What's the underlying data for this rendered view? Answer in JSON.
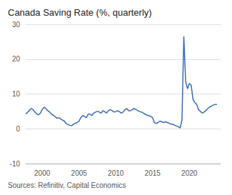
{
  "chart_data": {
    "type": "line",
    "title": "Canada Saving Rate (%, quarterly)",
    "source": "Sources: Refinitiv, Capital Economics",
    "color": "#3d6ab5",
    "grid": true,
    "xlim": [
      1997.75,
      2024.25
    ],
    "xticks": [
      2000,
      2005,
      2010,
      2015,
      2020
    ],
    "ylim": [
      -10,
      30
    ],
    "yticks": [
      -10,
      0,
      10,
      20,
      30
    ],
    "x": [
      1997.75,
      1998.0,
      1998.25,
      1998.5,
      1998.75,
      1999.0,
      1999.25,
      1999.5,
      1999.75,
      2000.0,
      2000.25,
      2000.5,
      2000.75,
      2001.0,
      2001.25,
      2001.5,
      2001.75,
      2002.0,
      2002.25,
      2002.5,
      2002.75,
      2003.0,
      2003.25,
      2003.5,
      2003.75,
      2004.0,
      2004.25,
      2004.5,
      2004.75,
      2005.0,
      2005.25,
      2005.5,
      2005.75,
      2006.0,
      2006.25,
      2006.5,
      2006.75,
      2007.0,
      2007.25,
      2007.5,
      2007.75,
      2008.0,
      2008.25,
      2008.5,
      2008.75,
      2009.0,
      2009.25,
      2009.5,
      2009.75,
      2010.0,
      2010.25,
      2010.5,
      2010.75,
      2011.0,
      2011.25,
      2011.5,
      2011.75,
      2012.0,
      2012.25,
      2012.5,
      2012.75,
      2013.0,
      2013.25,
      2013.5,
      2013.75,
      2014.0,
      2014.25,
      2014.5,
      2014.75,
      2015.0,
      2015.25,
      2015.5,
      2015.75,
      2016.0,
      2016.25,
      2016.5,
      2016.75,
      2017.0,
      2017.25,
      2017.5,
      2017.75,
      2018.0,
      2018.25,
      2018.5,
      2018.75,
      2019.0,
      2019.25,
      2019.5,
      2019.75,
      2020.0,
      2020.25,
      2020.5,
      2020.75,
      2021.0,
      2021.25,
      2021.5,
      2021.75,
      2022.0,
      2022.25,
      2022.5,
      2022.75,
      2023.0,
      2023.25,
      2023.5,
      2023.75
    ],
    "values": [
      4.3,
      4.7,
      5.3,
      5.8,
      5.5,
      4.8,
      4.3,
      4.0,
      4.5,
      5.5,
      6.2,
      5.8,
      5.2,
      4.8,
      4.2,
      3.9,
      3.5,
      3.0,
      3.2,
      2.8,
      2.5,
      2.2,
      1.5,
      1.2,
      1.0,
      0.9,
      1.3,
      1.6,
      1.8,
      2.2,
      3.2,
      3.8,
      3.5,
      3.2,
      4.2,
      4.2,
      3.8,
      4.5,
      4.8,
      5.0,
      4.8,
      4.5,
      5.2,
      4.9,
      4.5,
      5.2,
      5.5,
      5.2,
      4.8,
      4.9,
      5.2,
      4.9,
      4.5,
      4.8,
      5.5,
      5.8,
      5.2,
      5.2,
      5.5,
      5.8,
      5.5,
      5.2,
      4.9,
      4.8,
      4.5,
      4.2,
      3.9,
      3.8,
      3.5,
      3.2,
      1.8,
      1.5,
      1.8,
      2.2,
      2.0,
      1.8,
      2.0,
      1.8,
      1.6,
      1.3,
      1.3,
      1.0,
      0.8,
      0.6,
      0.2,
      2.5,
      26.5,
      13.5,
      11.5,
      13.0,
      12.5,
      8.5,
      7.5,
      7.0,
      5.5,
      5.0,
      4.5,
      4.8,
      5.2,
      5.8,
      6.2,
      6.5,
      6.8,
      7.0,
      7.0
    ]
  }
}
